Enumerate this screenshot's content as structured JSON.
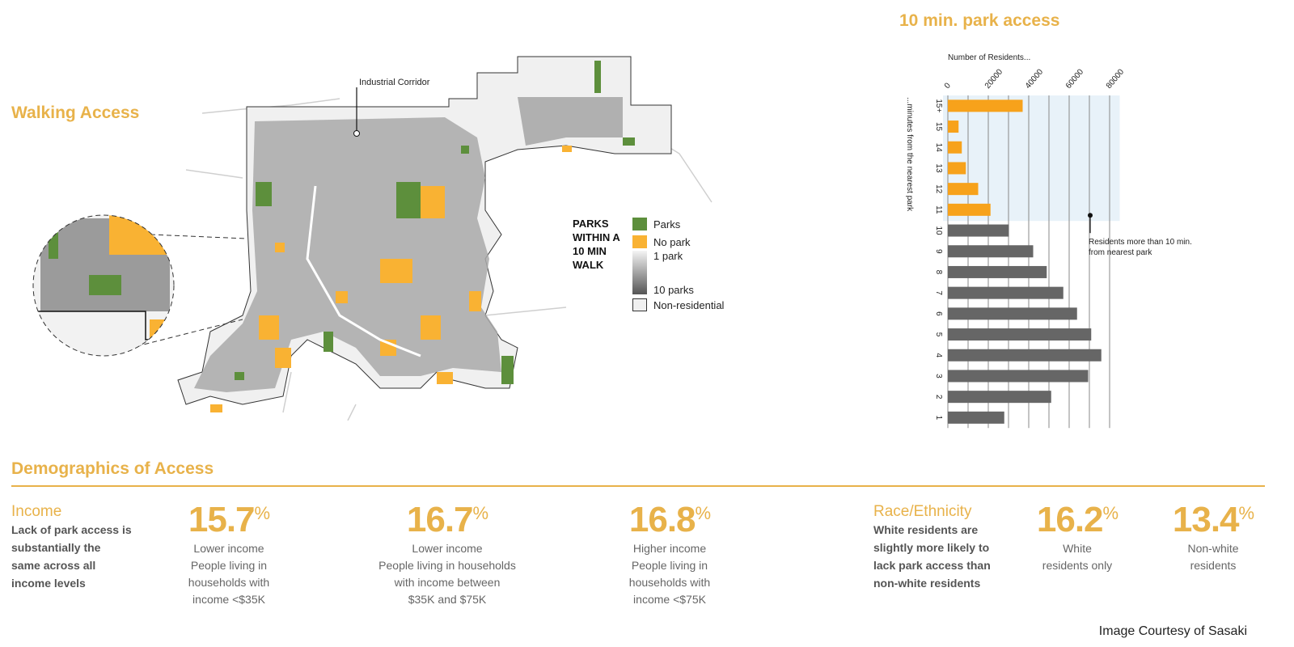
{
  "walking_access": {
    "title": "Walking Access",
    "annotation": "Industrial Corridor",
    "legend": {
      "title": "PARKS WITHIN A 10 MIN WALK",
      "items": [
        {
          "label": "Parks",
          "color": "#5d8f3c"
        },
        {
          "label": "No park",
          "color": "#f9b233"
        },
        {
          "label": "1 park"
        },
        {
          "label": "10 parks"
        },
        {
          "label": "Non-residential",
          "color": "#f0f0f0"
        }
      ]
    }
  },
  "chart_data": {
    "type": "bar",
    "orientation": "horizontal",
    "title": "10 min. park access",
    "xlabel": "Number of  Residents...",
    "ylabel": "...minutes from the nearest park",
    "categories": [
      "15+",
      "15",
      "14",
      "13",
      "12",
      "11",
      "10",
      "9",
      "8",
      "7",
      "6",
      "5",
      "4",
      "3",
      "2",
      "1"
    ],
    "values": [
      37000,
      5300,
      6900,
      8900,
      15000,
      21100,
      30200,
      42200,
      48900,
      57100,
      63900,
      70900,
      75900,
      69400,
      51100,
      27900
    ],
    "highlight_categories": [
      "15+",
      "15",
      "14",
      "13",
      "12",
      "11"
    ],
    "x_ticks": [
      0,
      20000,
      40000,
      60000,
      80000
    ],
    "xlim": [
      0,
      85000
    ],
    "grid": true,
    "colors": {
      "highlight": "#f7a21b",
      "normal": "#666666",
      "shade": "#e8f2f9"
    },
    "annotation": "Residents more than 10 min. from nearest park"
  },
  "demographics": {
    "title": "Demographics of Access",
    "income": {
      "heading": "Income",
      "body": "Lack of park access is substantially the same across all income levels",
      "stats": [
        {
          "value": "15.7",
          "unit": "%",
          "lines": [
            "Lower income",
            "People living in",
            "households with",
            "income <$35K"
          ]
        },
        {
          "value": "16.7",
          "unit": "%",
          "lines": [
            "Lower income",
            "People living in households",
            "with income between",
            "$35K and $75K"
          ]
        },
        {
          "value": "16.8",
          "unit": "%",
          "lines": [
            "Higher income",
            "People living in",
            "households with",
            "income <$75K"
          ]
        }
      ]
    },
    "race": {
      "heading": "Race/Ethnicity",
      "body": "White residents are slightly more likely to lack park access than non-white residents",
      "stats": [
        {
          "value": "16.2",
          "unit": "%",
          "lines": [
            "White",
            "residents only"
          ]
        },
        {
          "value": "13.4",
          "unit": "%",
          "lines": [
            "Non-white",
            "residents"
          ]
        }
      ]
    }
  },
  "credit": "Image Courtesy of Sasaki"
}
